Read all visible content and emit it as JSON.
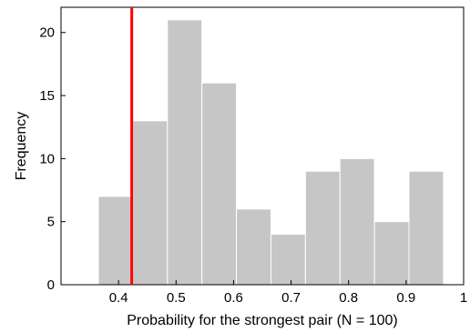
{
  "chart_data": {
    "type": "bar",
    "title": "",
    "xlabel": "Probability for the strongest pair (N = 100)",
    "ylabel": "Frequency",
    "xlim": [
      0.3,
      1.0
    ],
    "ylim": [
      0,
      22
    ],
    "x_ticks": [
      "0.4",
      "0.5",
      "0.6",
      "0.7",
      "0.8",
      "0.9",
      "1"
    ],
    "x_tick_values": [
      0.4,
      0.5,
      0.6,
      0.7,
      0.8,
      0.9,
      1.0
    ],
    "y_ticks": [
      "0",
      "5",
      "10",
      "15",
      "20"
    ],
    "y_tick_values": [
      0,
      5,
      10,
      15,
      20
    ],
    "bins": [
      {
        "x0": 0.365,
        "x1": 0.425,
        "value": 7
      },
      {
        "x0": 0.425,
        "x1": 0.485,
        "value": 13
      },
      {
        "x0": 0.485,
        "x1": 0.545,
        "value": 21
      },
      {
        "x0": 0.545,
        "x1": 0.605,
        "value": 16
      },
      {
        "x0": 0.605,
        "x1": 0.665,
        "value": 6
      },
      {
        "x0": 0.665,
        "x1": 0.725,
        "value": 4
      },
      {
        "x0": 0.725,
        "x1": 0.785,
        "value": 9
      },
      {
        "x0": 0.785,
        "x1": 0.845,
        "value": 10
      },
      {
        "x0": 0.845,
        "x1": 0.905,
        "value": 5
      },
      {
        "x0": 0.905,
        "x1": 0.965,
        "value": 9
      }
    ],
    "reference_line": {
      "x": 0.423,
      "color": "#ff0000"
    },
    "bar_color": "#c6c6c6",
    "bar_edge_color": "#ffffff",
    "grid": false,
    "legend": "none"
  }
}
